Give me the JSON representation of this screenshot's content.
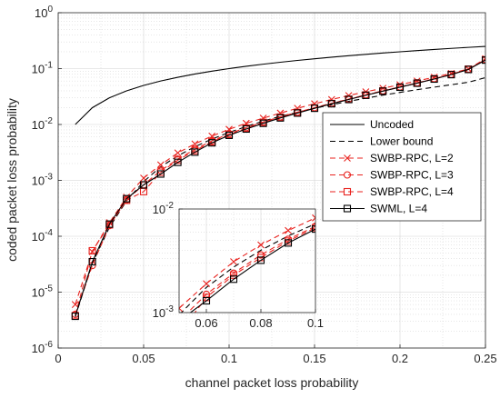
{
  "chart_data": {
    "type": "line",
    "title": "",
    "xlabel": "channel packet loss probability",
    "ylabel": "coded packet loss probability",
    "x_scale": "linear",
    "y_scale": "log",
    "xlim": [
      0,
      0.25
    ],
    "ylim": [
      1e-06,
      1
    ],
    "x_ticks": [
      0,
      0.05,
      0.1,
      0.15,
      0.2,
      0.25
    ],
    "x_tick_labels": [
      "0",
      "0.05",
      "0.1",
      "0.15",
      "0.2",
      "0.25"
    ],
    "y_ticks": [
      1e-06,
      1e-05,
      0.0001,
      0.001,
      0.01,
      0.1,
      1
    ],
    "y_tick_exponents": [
      "-6",
      "-5",
      "-4",
      "-3",
      "-2",
      "-1",
      "0"
    ],
    "y_tick_base": "10",
    "grid": true,
    "minor_grid": true,
    "legend_position": "right, middle",
    "x": [
      0.01,
      0.02,
      0.03,
      0.04,
      0.05,
      0.06,
      0.07,
      0.08,
      0.09,
      0.1,
      0.11,
      0.12,
      0.13,
      0.14,
      0.15,
      0.16,
      0.17,
      0.18,
      0.19,
      0.2,
      0.21,
      0.22,
      0.23,
      0.24,
      0.25
    ],
    "series": [
      {
        "name": "Uncoded",
        "color": "#000000",
        "dash": "solid",
        "marker": "none",
        "values": [
          0.01,
          0.02,
          0.03,
          0.04,
          0.05,
          0.06,
          0.07,
          0.08,
          0.09,
          0.1,
          0.11,
          0.12,
          0.13,
          0.14,
          0.15,
          0.16,
          0.17,
          0.18,
          0.19,
          0.2,
          0.21,
          0.22,
          0.23,
          0.24,
          0.25
        ]
      },
      {
        "name": "Lower bound",
        "color": "#000000",
        "dash": "dashed",
        "marker": "none",
        "values": [
          3.6e-06,
          3.3e-05,
          0.000145,
          0.00043,
          0.00095,
          0.00175,
          0.00275,
          0.004,
          0.0055,
          0.0072,
          0.0092,
          0.0115,
          0.014,
          0.0165,
          0.0195,
          0.0225,
          0.026,
          0.0295,
          0.0335,
          0.0375,
          0.042,
          0.0465,
          0.0515,
          0.057,
          0.069
        ]
      },
      {
        "name": "SWBP-RPC, L=2",
        "color": "#e8221e",
        "dash": "dashed",
        "marker": "x",
        "values": [
          6e-06,
          5.3e-05,
          0.000175,
          0.0005,
          0.0011,
          0.0019,
          0.0031,
          0.0045,
          0.0062,
          0.0082,
          0.0105,
          0.013,
          0.016,
          0.0195,
          0.0235,
          0.028,
          0.033,
          0.0385,
          0.0445,
          0.0515,
          0.06,
          0.07,
          0.082,
          0.099,
          0.15
        ]
      },
      {
        "name": "SWBP-RPC, L=3",
        "color": "#e8221e",
        "dash": "dashed",
        "marker": "o",
        "values": [
          4e-06,
          3e-05,
          0.000155,
          0.00045,
          0.00083,
          0.0015,
          0.0024,
          0.0036,
          0.0051,
          0.0068,
          0.0088,
          0.0111,
          0.0137,
          0.0166,
          0.02,
          0.024,
          0.0285,
          0.034,
          0.04,
          0.047,
          0.0555,
          0.066,
          0.079,
          0.098,
          0.145
        ]
      },
      {
        "name": "SWBP-RPC, L=4",
        "color": "#e8221e",
        "dash": "dashed",
        "marker": "s",
        "values": [
          3.8e-06,
          5.5e-05,
          0.00016,
          0.00044,
          0.00063,
          0.0014,
          0.0023,
          0.0034,
          0.0049,
          0.0066,
          0.0086,
          0.0109,
          0.0135,
          0.0164,
          0.0198,
          0.0238,
          0.0283,
          0.0337,
          0.0398,
          0.0468,
          0.055,
          0.0655,
          0.0785,
          0.0975,
          0.143
        ]
      },
      {
        "name": "SWML, L=4",
        "color": "#000000",
        "dash": "solid",
        "marker": "s",
        "values": [
          3.7e-06,
          3.5e-05,
          0.000165,
          0.00047,
          0.00083,
          0.0013,
          0.0021,
          0.0032,
          0.0047,
          0.0064,
          0.0083,
          0.0105,
          0.0131,
          0.016,
          0.0195,
          0.0235,
          0.028,
          0.0333,
          0.0395,
          0.0465,
          0.0548,
          0.065,
          0.078,
          0.0965,
          0.142
        ]
      }
    ],
    "inset": {
      "xlim": [
        0.05,
        0.1
      ],
      "ylim": [
        0.001,
        0.01
      ],
      "x_ticks": [
        0.06,
        0.08,
        0.1
      ],
      "x_tick_labels": [
        "0.06",
        "0.08",
        "0.1"
      ],
      "y_ticks": [
        0.001,
        0.01
      ],
      "y_tick_exponents": [
        "-3",
        "-2"
      ],
      "y_tick_base": "10"
    }
  }
}
